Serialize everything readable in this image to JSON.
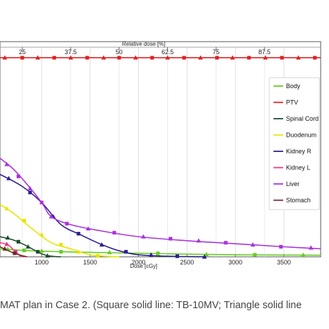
{
  "caption": "MAT plan in Case 2. (Square solid line: TB-10MV; Triangle solid line",
  "chart_data": {
    "type": "line",
    "title": "",
    "xlabel": "Dose [cGy]",
    "x2label": "Relative dose [%]",
    "ylabel": "",
    "xlim": [
      570,
      3880
    ],
    "ylim": [
      0,
      107
    ],
    "x_ticks": [
      1000,
      1500,
      2000,
      2500,
      3000,
      3500
    ],
    "x2_ticks": [
      {
        "dose": 800,
        "label": "25"
      },
      {
        "dose": 1300,
        "label": "37.5"
      },
      {
        "dose": 1800,
        "label": "50"
      },
      {
        "dose": 2300,
        "label": "62.5"
      },
      {
        "dose": 2800,
        "label": "75"
      },
      {
        "dose": 3300,
        "label": "87.5"
      }
    ],
    "legend_position": "right",
    "grid": true,
    "series": [
      {
        "name": "Body",
        "color": "#66cc22",
        "points": [
          [
            570,
            4.0
          ],
          [
            800,
            3.2
          ],
          [
            1000,
            2.8
          ],
          [
            1500,
            2.2
          ],
          [
            2000,
            1.8
          ],
          [
            2500,
            1.3
          ],
          [
            3000,
            1.0
          ],
          [
            3500,
            0.9
          ],
          [
            3880,
            0.8
          ]
        ],
        "markers": [
          [
            650,
            3.8
          ],
          [
            820,
            3.2
          ],
          [
            1000,
            2.9
          ],
          [
            1200,
            2.5
          ],
          [
            1700,
            2.2
          ],
          [
            2200,
            1.7
          ],
          [
            2700,
            1.2
          ],
          [
            3200,
            1.0
          ],
          [
            3700,
            0.9
          ]
        ]
      },
      {
        "name": "PTV",
        "color": "#dd2222",
        "points": [
          [
            570,
            99
          ],
          [
            3880,
            99
          ]
        ],
        "markers": [
          [
            620,
            99
          ],
          [
            800,
            99
          ],
          [
            960,
            99
          ],
          [
            1130,
            99
          ],
          [
            1300,
            99
          ],
          [
            1470,
            99
          ],
          [
            1640,
            99
          ],
          [
            1800,
            99
          ],
          [
            1970,
            99
          ],
          [
            2140,
            99
          ],
          [
            2300,
            99
          ],
          [
            2470,
            99
          ],
          [
            2640,
            99
          ],
          [
            2810,
            99
          ],
          [
            2970,
            99
          ],
          [
            3140,
            99
          ],
          [
            3310,
            99
          ],
          [
            3480,
            99
          ],
          [
            3650,
            99
          ],
          [
            3820,
            99
          ]
        ]
      },
      {
        "name": "Spinal Cord",
        "color": "#1b4d2e",
        "points": [
          [
            570,
            10
          ],
          [
            700,
            8.5
          ],
          [
            800,
            6.5
          ],
          [
            900,
            4
          ],
          [
            1000,
            1.5
          ],
          [
            1100,
            0.3
          ],
          [
            1200,
            0
          ]
        ],
        "markers": [
          [
            650,
            9.5
          ],
          [
            760,
            7.5
          ],
          [
            860,
            5
          ],
          [
            960,
            2.5
          ],
          [
            1060,
            0.5
          ]
        ]
      },
      {
        "name": "Duodenum",
        "color": "#e6e600",
        "points": [
          [
            570,
            26
          ],
          [
            700,
            22
          ],
          [
            900,
            14
          ],
          [
            1100,
            7
          ],
          [
            1300,
            4
          ],
          [
            1500,
            1
          ],
          [
            1700,
            0.2
          ],
          [
            1800,
            0
          ]
        ],
        "markers": [
          [
            640,
            24
          ],
          [
            820,
            18
          ],
          [
            1000,
            11
          ],
          [
            1200,
            6
          ],
          [
            1380,
            2.5
          ],
          [
            1580,
            0.5
          ]
        ]
      },
      {
        "name": "Kidney R",
        "color": "#2d1f8f",
        "points": [
          [
            570,
            41
          ],
          [
            800,
            35
          ],
          [
            1000,
            27
          ],
          [
            1200,
            16
          ],
          [
            1400,
            11
          ],
          [
            1600,
            6.5
          ],
          [
            1800,
            3
          ],
          [
            2000,
            1
          ],
          [
            2300,
            0.3
          ],
          [
            2700,
            0
          ]
        ],
        "markers": [
          [
            660,
            39
          ],
          [
            880,
            32
          ],
          [
            1120,
            20
          ],
          [
            1380,
            11.5
          ],
          [
            1620,
            6
          ],
          [
            1870,
            2.5
          ],
          [
            2130,
            1
          ],
          [
            2400,
            0.3
          ],
          [
            2680,
            0
          ]
        ]
      },
      {
        "name": "Kidney L",
        "color": "#ee3388",
        "points": [
          [
            570,
            7
          ],
          [
            650,
            6
          ],
          [
            720,
            3
          ],
          [
            780,
            0.5
          ],
          [
            820,
            0
          ]
        ],
        "markers": [
          [
            640,
            6.3
          ],
          [
            730,
            2.5
          ]
        ]
      },
      {
        "name": "Liver",
        "color": "#aa33dd",
        "points": [
          [
            570,
            49
          ],
          [
            700,
            44
          ],
          [
            850,
            36
          ],
          [
            1000,
            27
          ],
          [
            1100,
            20
          ],
          [
            1300,
            16
          ],
          [
            1600,
            13
          ],
          [
            2000,
            10
          ],
          [
            2500,
            8
          ],
          [
            3000,
            6.5
          ],
          [
            3500,
            5
          ],
          [
            3880,
            4
          ]
        ],
        "markers": [
          [
            640,
            46
          ],
          [
            760,
            40
          ],
          [
            880,
            34
          ],
          [
            1000,
            27
          ],
          [
            1100,
            20
          ],
          [
            1260,
            16.5
          ],
          [
            1480,
            14
          ],
          [
            1750,
            12
          ],
          [
            2050,
            10
          ],
          [
            2330,
            9
          ],
          [
            2620,
            8
          ],
          [
            2900,
            7
          ],
          [
            3180,
            6
          ],
          [
            3470,
            5
          ],
          [
            3780,
            4.5
          ]
        ]
      },
      {
        "name": "Stomach",
        "color": "#6e2a2a",
        "points": [
          [
            570,
            5
          ],
          [
            680,
            2.5
          ],
          [
            780,
            0.8
          ],
          [
            850,
            0
          ]
        ],
        "markers": [
          [
            620,
            4
          ],
          [
            720,
            1.8
          ]
        ]
      }
    ]
  }
}
